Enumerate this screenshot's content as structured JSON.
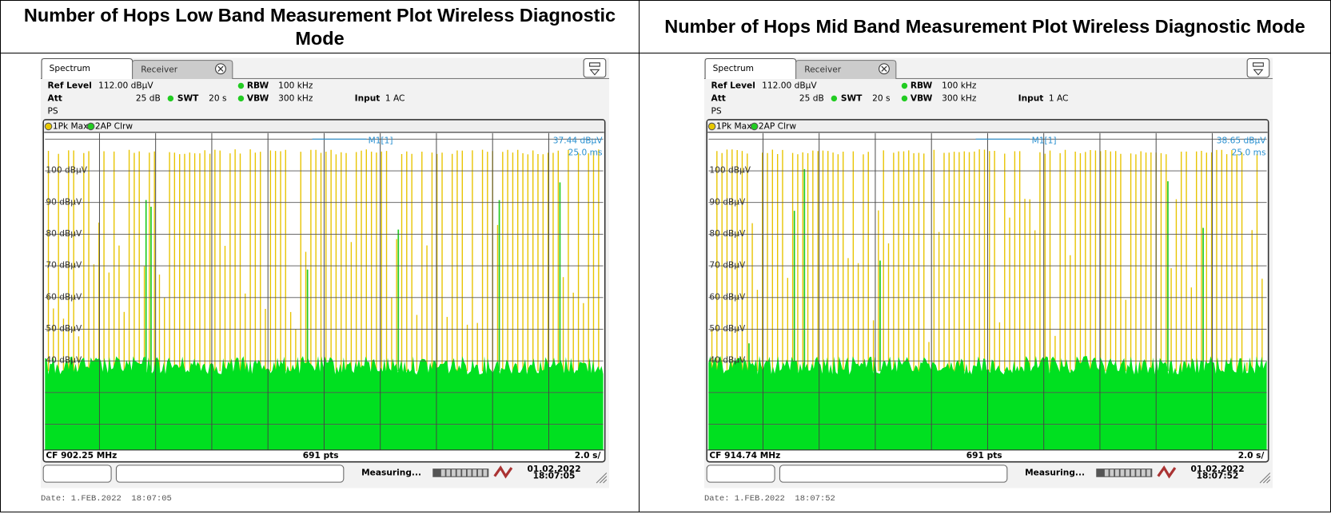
{
  "columns": [
    {
      "title": "Number of Hops Low Band Measurement Plot Wireless Diagnostic Mode",
      "screen": {
        "tab1": "Spectrum",
        "tab2": "Receiver",
        "ref_level_label": "Ref Level",
        "ref_level": "112.00 dBµV",
        "att_label": "Att",
        "att": "25 dB",
        "swt_label": "SWT",
        "swt": "20 s",
        "rbw_label": "RBW",
        "rbw": "100 kHz",
        "vbw_label": "VBW",
        "vbw": "300 kHz",
        "input_label": "Input",
        "input": "1 AC",
        "mode": "PS",
        "trace1": "1Pk Max",
        "trace2": "2AP Clrw",
        "marker": "M1[1]",
        "marker_level": "37.44 dBµV",
        "marker_time": "25.0 ms",
        "y_labels": [
          "100 dBµV",
          "90 dBµV",
          "80 dBµV",
          "70 dBµV",
          "60 dBµV",
          "50 dBµV",
          "40 dBµV"
        ],
        "cf": "CF 902.25 MHz",
        "pts": "691 pts",
        "sweep": "2.0 s/",
        "status": "Measuring...",
        "status_date": "01.02.2022",
        "status_time": "18:07:05"
      },
      "date": "Date: 1.FEB.2022  18:07:05"
    },
    {
      "title": "Number of Hops Mid Band Measurement Plot Wireless Diagnostic Mode",
      "screen": {
        "tab1": "Spectrum",
        "tab2": "Receiver",
        "ref_level_label": "Ref Level",
        "ref_level": "112.00 dBµV",
        "att_label": "Att",
        "att": "25 dB",
        "swt_label": "SWT",
        "swt": "20 s",
        "rbw_label": "RBW",
        "rbw": "100 kHz",
        "vbw_label": "VBW",
        "vbw": "300 kHz",
        "input_label": "Input",
        "input": "1 AC",
        "mode": "PS",
        "trace1": "1Pk Max",
        "trace2": "2AP Clrw",
        "marker": "M1[1]",
        "marker_level": "38.65 dBµV",
        "marker_time": "25.0 ms",
        "y_labels": [
          "100 dBµV",
          "90 dBµV",
          "80 dBµV",
          "70 dBµV",
          "60 dBµV",
          "50 dBµV",
          "40 dBµV"
        ],
        "cf": "CF 914.74 MHz",
        "pts": "691 pts",
        "sweep": "2.0 s/",
        "status": "Measuring...",
        "status_date": "01.02.2022",
        "status_time": "18:07:52"
      },
      "date": "Date: 1.FEB.2022  18:07:52"
    }
  ]
}
